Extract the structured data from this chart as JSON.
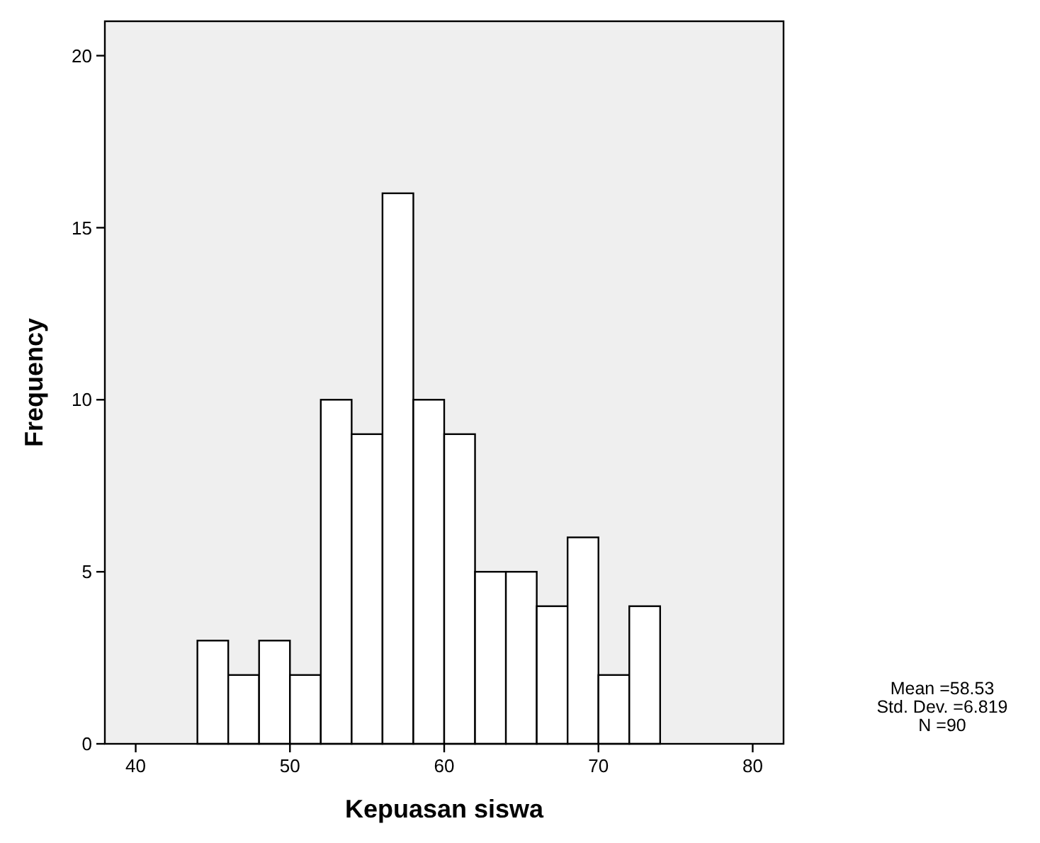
{
  "chart_data": {
    "type": "histogram",
    "xlabel": "Kepuasan siswa",
    "ylabel": "Frequency",
    "bins": [
      44,
      46,
      48,
      50,
      52,
      54,
      56,
      58,
      60,
      62,
      64,
      66,
      68,
      70,
      72,
      74
    ],
    "values": [
      3,
      2,
      3,
      2,
      10,
      9,
      16,
      10,
      9,
      5,
      5,
      4,
      6,
      2,
      4
    ],
    "color": "#ffffff",
    "xlim": [
      38,
      82
    ],
    "xticks": [
      40,
      50,
      60,
      70,
      80
    ],
    "ylim": [
      0,
      21
    ],
    "yticks": [
      0,
      5,
      10,
      15,
      20
    ],
    "grid": false,
    "annotations": [
      "Mean =58.53",
      "Std. Dev. =6.819",
      "N =90"
    ]
  }
}
